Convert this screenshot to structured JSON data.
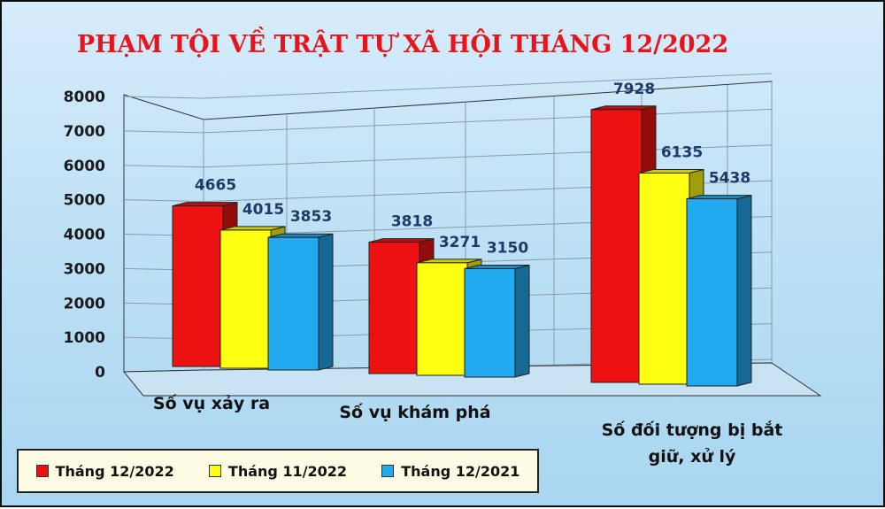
{
  "chart_data": {
    "type": "bar",
    "title": "PHẠM TỘI VỀ TRẬT TỰ XÃ HỘI THÁNG 12/2022",
    "categories": [
      "Số vụ xảy ra",
      "Số vụ khám phá",
      "Số đối tượng bị bắt giữ, xử lý"
    ],
    "series": [
      {
        "name": "Tháng 12/2022",
        "values": [
          4665,
          3818,
          7928
        ],
        "color": "#ee1111"
      },
      {
        "name": "Tháng 11/2022",
        "values": [
          4015,
          3271,
          6135
        ],
        "color": "#ffff11"
      },
      {
        "name": "Tháng 12/2021",
        "values": [
          3853,
          3150,
          5438
        ],
        "color": "#22aaee"
      }
    ],
    "ylim": [
      0,
      8000
    ],
    "yticks": [
      "0",
      "1000",
      "2000",
      "3000",
      "4000",
      "5000",
      "6000",
      "7000",
      "8000"
    ],
    "grid": true,
    "legend_position": "bottom-left"
  }
}
